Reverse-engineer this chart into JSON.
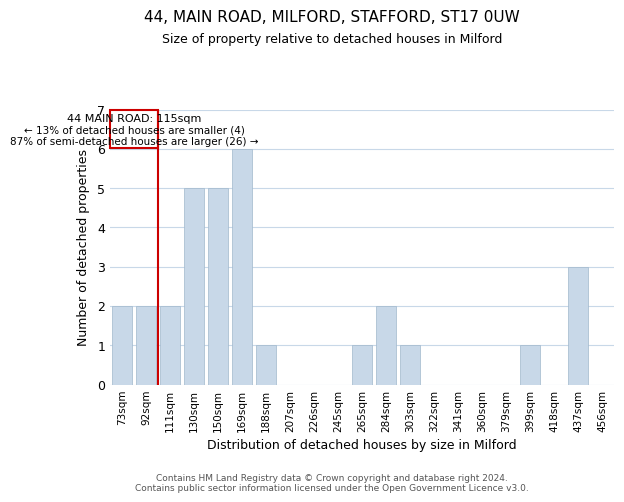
{
  "title": "44, MAIN ROAD, MILFORD, STAFFORD, ST17 0UW",
  "subtitle": "Size of property relative to detached houses in Milford",
  "xlabel": "Distribution of detached houses by size in Milford",
  "ylabel": "Number of detached properties",
  "categories": [
    "73sqm",
    "92sqm",
    "111sqm",
    "130sqm",
    "150sqm",
    "169sqm",
    "188sqm",
    "207sqm",
    "226sqm",
    "245sqm",
    "265sqm",
    "284sqm",
    "303sqm",
    "322sqm",
    "341sqm",
    "360sqm",
    "379sqm",
    "399sqm",
    "418sqm",
    "437sqm",
    "456sqm"
  ],
  "values": [
    2,
    2,
    2,
    5,
    5,
    6,
    1,
    0,
    0,
    0,
    1,
    2,
    1,
    0,
    0,
    0,
    0,
    1,
    0,
    3,
    0
  ],
  "bar_color": "#c8d8e8",
  "bar_edge_color": "#a0b8cc",
  "property_line_label": "44 MAIN ROAD: 115sqm",
  "annotation_line1": "← 13% of detached houses are smaller (4)",
  "annotation_line2": "87% of semi-detached houses are larger (26) →",
  "ylim": [
    0,
    7
  ],
  "yticks": [
    0,
    1,
    2,
    3,
    4,
    5,
    6,
    7
  ],
  "footer_line1": "Contains HM Land Registry data © Crown copyright and database right 2024.",
  "footer_line2": "Contains public sector information licensed under the Open Government Licence v3.0.",
  "box_color": "#cc0000",
  "background_color": "#ffffff",
  "grid_color": "#c8d8e8"
}
